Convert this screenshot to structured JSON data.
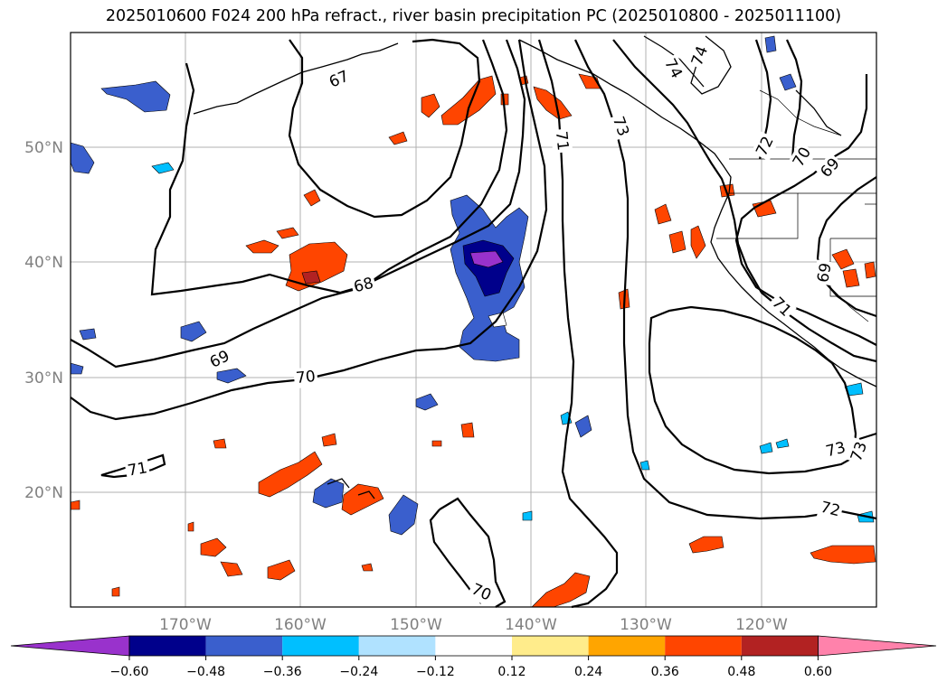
{
  "title": "2025010600 F024 200 hPa refract., river basin precipitation PC (2025010800 - 2025011100)",
  "map": {
    "lon_ticks": [
      "170°W",
      "160°W",
      "150°W",
      "140°W",
      "130°W",
      "120°W"
    ],
    "lat_ticks": [
      "50°N",
      "40°N",
      "30°N",
      "20°N"
    ],
    "contour_labels": [
      "67",
      "68",
      "69",
      "70",
      "71",
      "72",
      "73",
      "74",
      "70",
      "71",
      "69",
      "70",
      "72",
      "73",
      "74",
      "69",
      "71",
      "73"
    ]
  },
  "colorbar": {
    "ticks": [
      "−0.60",
      "−0.48",
      "−0.36",
      "−0.24",
      "−0.12",
      "0.12",
      "0.24",
      "0.36",
      "0.48",
      "0.60"
    ],
    "colors": [
      "#9932cc",
      "#00008b",
      "#3a5fcd",
      "#00bfff",
      "#b0e2ff",
      "#ffffff",
      "#ffec8b",
      "#ffa500",
      "#ff4500",
      "#b22222",
      "#ff82ab"
    ]
  }
}
